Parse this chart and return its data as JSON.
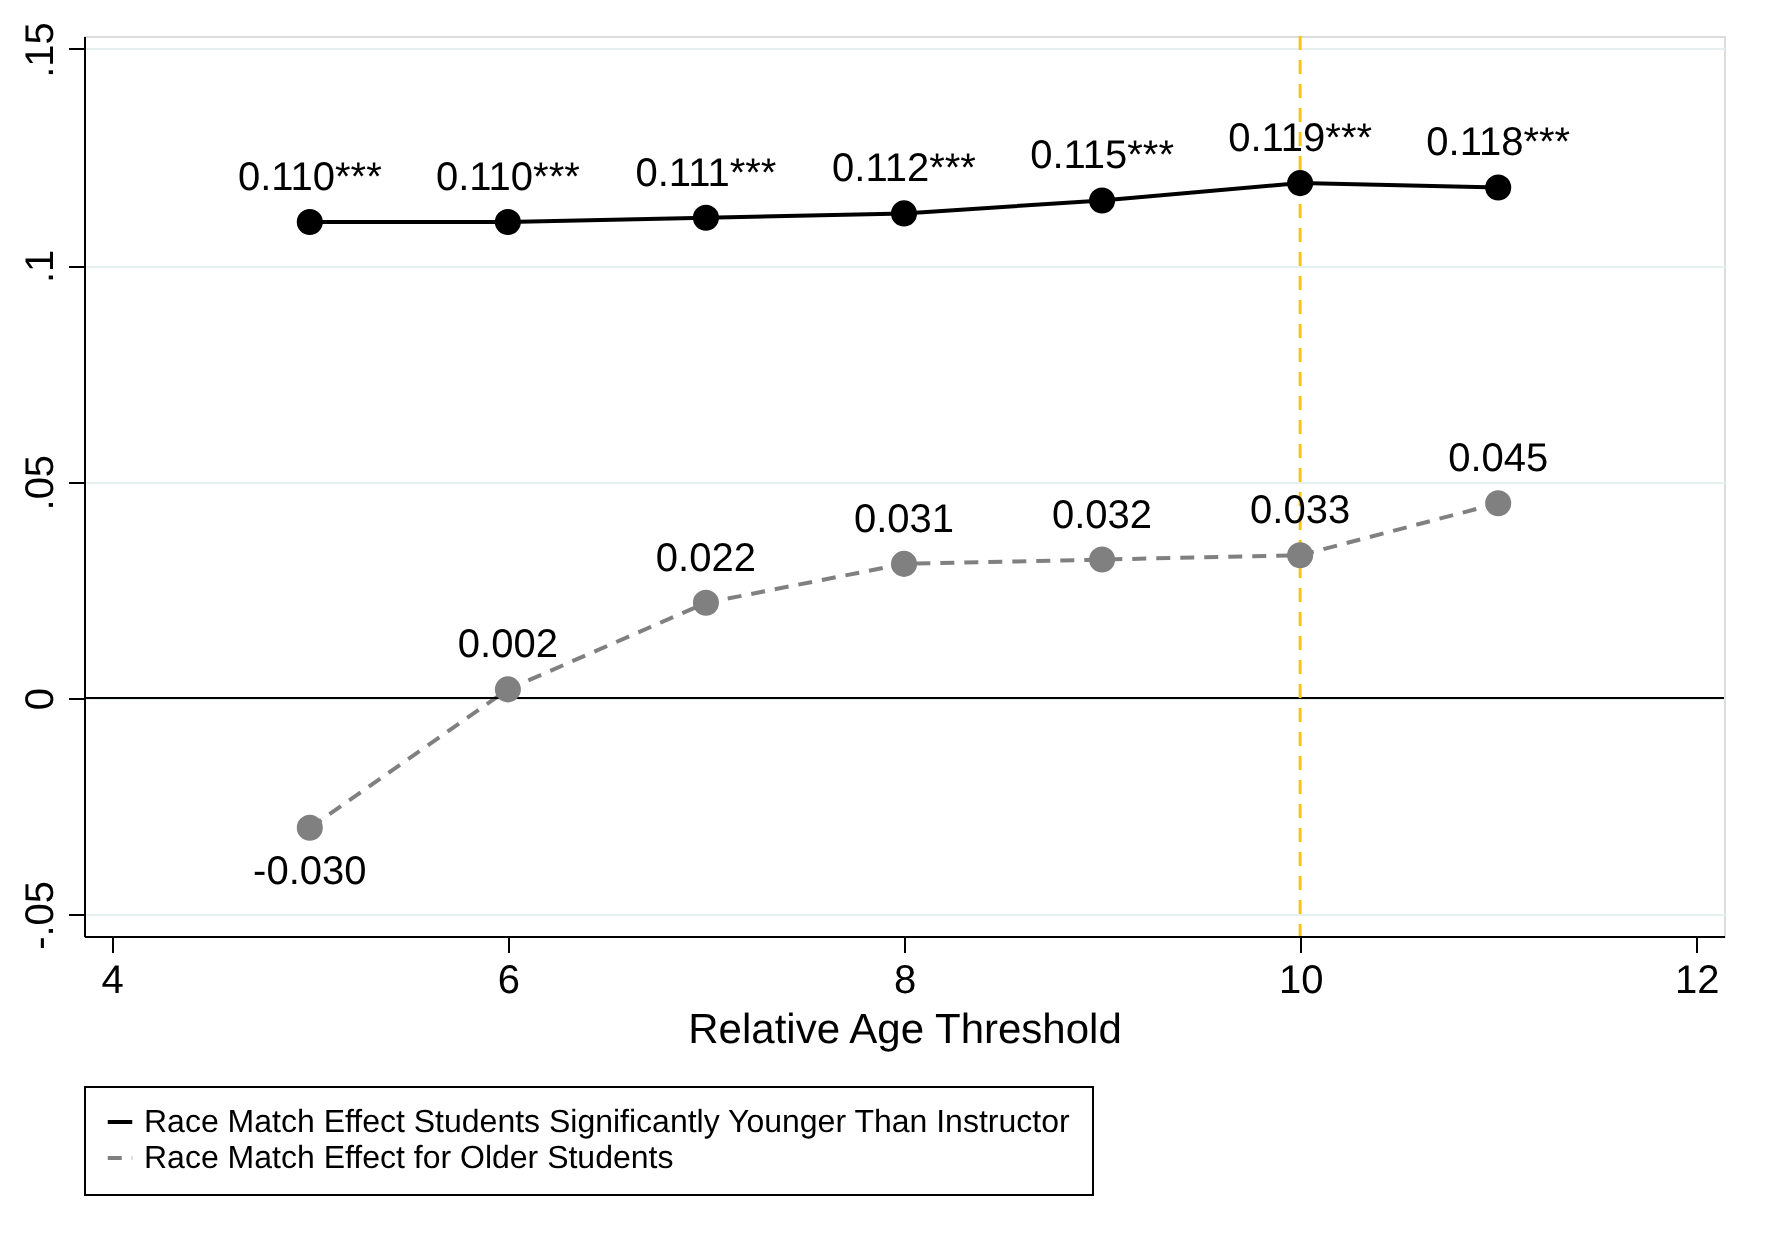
{
  "chart_data": {
    "type": "line",
    "xlabel": "Relative Age Threshold",
    "x": [
      5,
      6,
      7,
      8,
      9,
      10,
      11
    ],
    "series": [
      {
        "name": "Race Match Effect Students Significantly Younger Than Instructor",
        "color": "#000000",
        "line_style": "solid",
        "values": [
          0.11,
          0.11,
          0.111,
          0.112,
          0.115,
          0.119,
          0.118
        ],
        "value_labels": [
          "0.110***",
          "0.110***",
          "0.111***",
          "0.112***",
          "0.115***",
          "0.119***",
          "0.118***"
        ]
      },
      {
        "name": "Race Match Effect for Older Students",
        "color": "#808080",
        "line_style": "dashed",
        "values": [
          -0.03,
          0.002,
          0.022,
          0.031,
          0.032,
          0.033,
          0.045
        ],
        "value_labels": [
          "-0.030",
          "0.002",
          "0.022",
          "0.031",
          "0.032",
          "0.033",
          "0.045"
        ]
      }
    ],
    "xlim": [
      3.86,
      12.14
    ],
    "xticks": [
      4,
      6,
      8,
      10,
      12
    ],
    "ylim": [
      -0.055,
      0.153
    ],
    "yticks": [
      {
        "value": -0.05,
        "label": "-.05"
      },
      {
        "value": 0,
        "label": "0"
      },
      {
        "value": 0.05,
        "label": ".05"
      },
      {
        "value": 0.1,
        "label": ".1"
      },
      {
        "value": 0.15,
        "label": ".15"
      }
    ],
    "grid": "y",
    "marker": "circle",
    "legend": "bottom",
    "ref_lines": [
      {
        "axis": "y",
        "value": 0,
        "color": "#000000",
        "line_style": "solid"
      },
      {
        "axis": "x",
        "value": 10,
        "color": "#f5c518",
        "line_style": "dashed"
      }
    ]
  }
}
